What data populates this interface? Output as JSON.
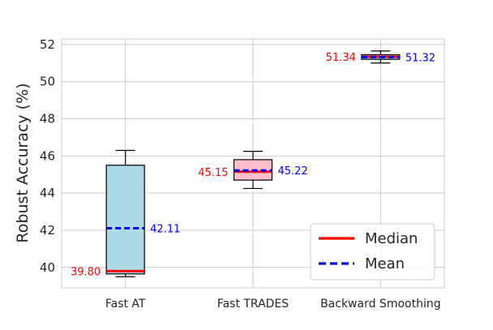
{
  "chart_data": {
    "type": "box",
    "title": "",
    "xlabel": "",
    "ylabel": "Robust Accuracy (%)",
    "ylim": [
      38.9,
      52.3
    ],
    "yticks": [
      40,
      42,
      44,
      46,
      48,
      50,
      52
    ],
    "grid": true,
    "categories": [
      "Fast AT",
      "Fast TRADES",
      "Backward Smoothing"
    ],
    "boxes": [
      {
        "category": "Fast AT",
        "whisker_low": 39.5,
        "q1": 39.65,
        "median": 39.8,
        "q3": 45.5,
        "whisker_high": 46.3,
        "mean": 42.11,
        "median_label": "39.80",
        "mean_label": "42.11",
        "fill": "#add8e6"
      },
      {
        "category": "Fast TRADES",
        "whisker_low": 44.25,
        "q1": 44.7,
        "median": 45.15,
        "q3": 45.8,
        "whisker_high": 46.25,
        "mean": 45.22,
        "median_label": "45.15",
        "mean_label": "45.22",
        "fill": "#ffc0cb"
      },
      {
        "category": "Backward Smoothing",
        "whisker_low": 51.0,
        "q1": 51.2,
        "median": 51.34,
        "q3": 51.45,
        "whisker_high": 51.65,
        "mean": 51.32,
        "median_label": "51.34",
        "mean_label": "51.32",
        "fill": "#add8e6"
      }
    ],
    "median_color": "#ff0000",
    "mean_color": "#0000ff",
    "legend": {
      "position": "lower-right",
      "entries": [
        {
          "label": "Median",
          "style": "solid",
          "color": "#ff0000"
        },
        {
          "label": "Mean",
          "style": "dashed",
          "color": "#0000ff"
        }
      ]
    }
  }
}
